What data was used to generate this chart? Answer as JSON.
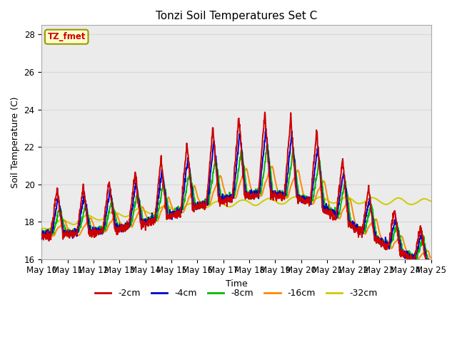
{
  "title": "Tonzi Soil Temperatures Set C",
  "xlabel": "Time",
  "ylabel": "Soil Temperature (C)",
  "ylim": [
    16,
    28.5
  ],
  "series_colors": {
    "-2cm": "#cc0000",
    "-4cm": "#0000cc",
    "-8cm": "#00bb00",
    "-16cm": "#ff8800",
    "-32cm": "#cccc00"
  },
  "background_color": "#ffffff",
  "plot_bg_color": "#ebebeb",
  "annotation_text": "TZ_fmet",
  "annotation_bg": "#ffffcc",
  "annotation_border": "#999900",
  "tick_labels": [
    "May 10",
    "May 11",
    "May 12",
    "May 13",
    "May 14",
    "May 15",
    "May 16",
    "May 17",
    "May 18",
    "May 19",
    "May 20",
    "May 21",
    "May 22",
    "May 23",
    "May 24",
    "May 25"
  ],
  "yticks": [
    16,
    18,
    20,
    22,
    24,
    26,
    28
  ],
  "grid_color": "#d8d8d8",
  "line_width": 1.4
}
